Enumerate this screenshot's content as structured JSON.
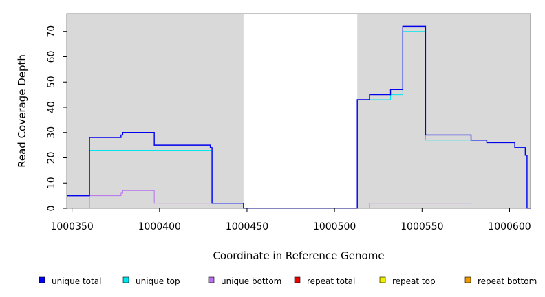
{
  "chart_data": {
    "type": "line",
    "step": true,
    "xlabel": "Coordinate in Reference Genome",
    "ylabel": "Read Coverage Depth",
    "xlim": [
      1000347,
      1000612
    ],
    "ylim": [
      0,
      77
    ],
    "x_ticks": [
      1000350,
      1000400,
      1000450,
      1000500,
      1000550,
      1000600
    ],
    "x_tick_labels": [
      "1000350",
      "1000400",
      "1000450",
      "1000500",
      "1000550",
      "1000600"
    ],
    "y_ticks": [
      0,
      10,
      20,
      30,
      40,
      50,
      60,
      70
    ],
    "y_tick_labels": [
      "0",
      "10",
      "20",
      "30",
      "40",
      "50",
      "60",
      "70"
    ],
    "shaded_regions": [
      {
        "x0": 1000347,
        "x1": 1000448,
        "color": "#d9d9d9"
      },
      {
        "x0": 1000513,
        "x1": 1000612,
        "color": "#d9d9d9"
      }
    ],
    "legend_position": "bottom",
    "series": [
      {
        "name": "unique total",
        "color": "#0000ee",
        "x": [
          1000347,
          1000360,
          1000378,
          1000379,
          1000397,
          1000429,
          1000430,
          1000448,
          1000513,
          1000520,
          1000532,
          1000539,
          1000552,
          1000578,
          1000587,
          1000603,
          1000609,
          1000610
        ],
        "y": [
          5,
          28,
          29,
          30,
          25,
          24,
          2,
          0,
          43,
          45,
          47,
          72,
          29,
          27,
          26,
          24,
          21,
          0
        ]
      },
      {
        "name": "unique top",
        "color": "#00e5ee",
        "x": [
          1000347,
          1000360,
          1000430,
          1000448,
          1000513,
          1000520,
          1000532,
          1000539,
          1000552,
          1000578,
          1000587,
          1000603,
          1000609,
          1000610
        ],
        "y": [
          0,
          23,
          2,
          0,
          43,
          43,
          45,
          70,
          27,
          27,
          26,
          24,
          21,
          0
        ]
      },
      {
        "name": "unique bottom",
        "color": "#b870ee",
        "x": [
          1000347,
          1000378,
          1000379,
          1000397,
          1000448,
          1000520,
          1000578
        ],
        "y": [
          5,
          6,
          7,
          2,
          0,
          2,
          0
        ]
      },
      {
        "name": "repeat total",
        "color": "#ee0000",
        "x": [
          1000347
        ],
        "y": [
          0
        ]
      },
      {
        "name": "repeat top",
        "color": "#eeee00",
        "x": [
          1000347
        ],
        "y": [
          0
        ]
      },
      {
        "name": "repeat bottom",
        "color": "#ee9a00",
        "x": [
          1000347,
          1000448
        ],
        "y": [
          0,
          0
        ]
      }
    ]
  }
}
